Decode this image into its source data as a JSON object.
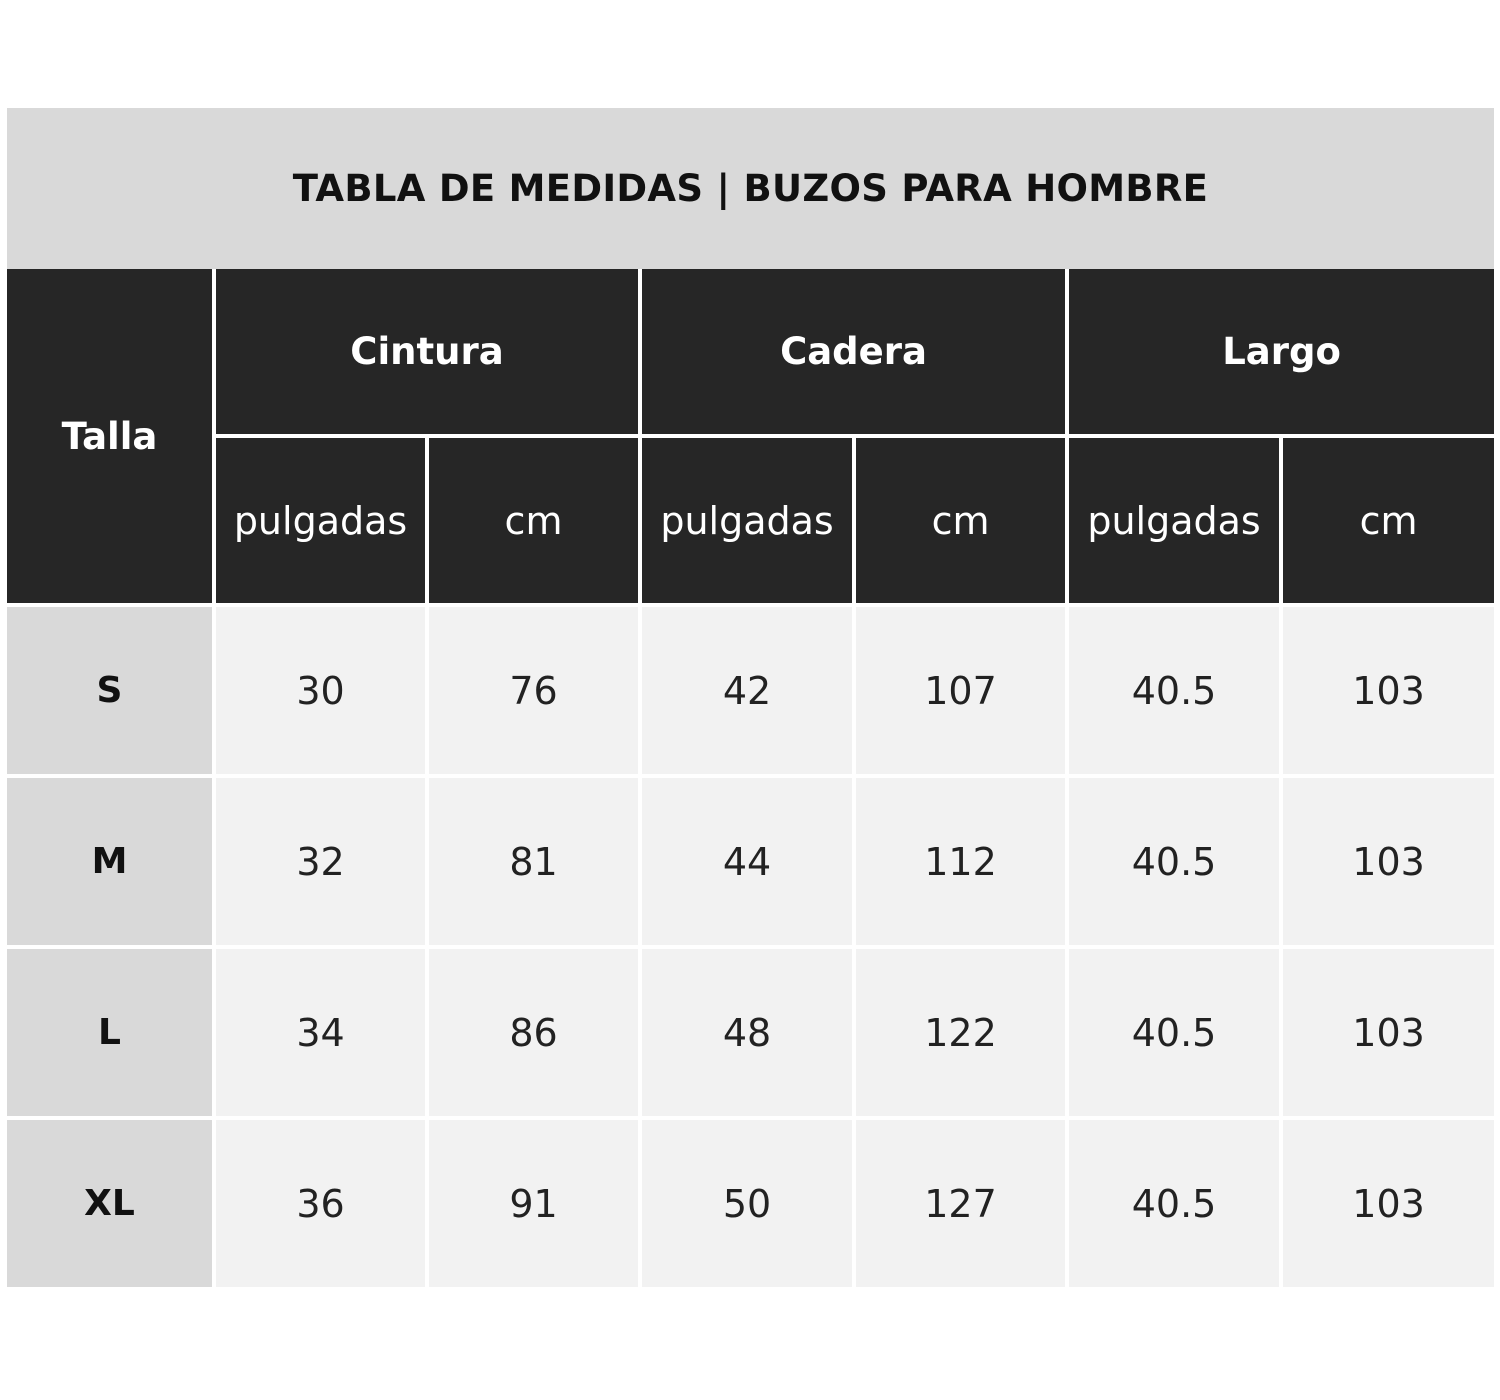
{
  "title": "TABLA DE MEDIDAS | BUZOS PARA HOMBRE",
  "header": {
    "size_label": "Talla",
    "groups": [
      "Cintura",
      "Cadera",
      "Largo"
    ],
    "units": [
      "pulgadas",
      "cm",
      "pulgadas",
      "cm",
      "pulgadas",
      "cm"
    ]
  },
  "rows": [
    {
      "size": "S",
      "values": [
        "30",
        "76",
        "42",
        "107",
        "40.5",
        "103"
      ]
    },
    {
      "size": "M",
      "values": [
        "32",
        "81",
        "44",
        "112",
        "40.5",
        "103"
      ]
    },
    {
      "size": "L",
      "values": [
        "34",
        "86",
        "48",
        "122",
        "40.5",
        "103"
      ]
    },
    {
      "size": "XL",
      "values": [
        "36",
        "91",
        "50",
        "127",
        "40.5",
        "103"
      ]
    }
  ],
  "colors": {
    "title_background": "#d9d9d9",
    "header_background": "#262626",
    "header_text": "#ffffff",
    "size_column_background": "#d9d9d9",
    "value_background": "#f2f2f2"
  }
}
